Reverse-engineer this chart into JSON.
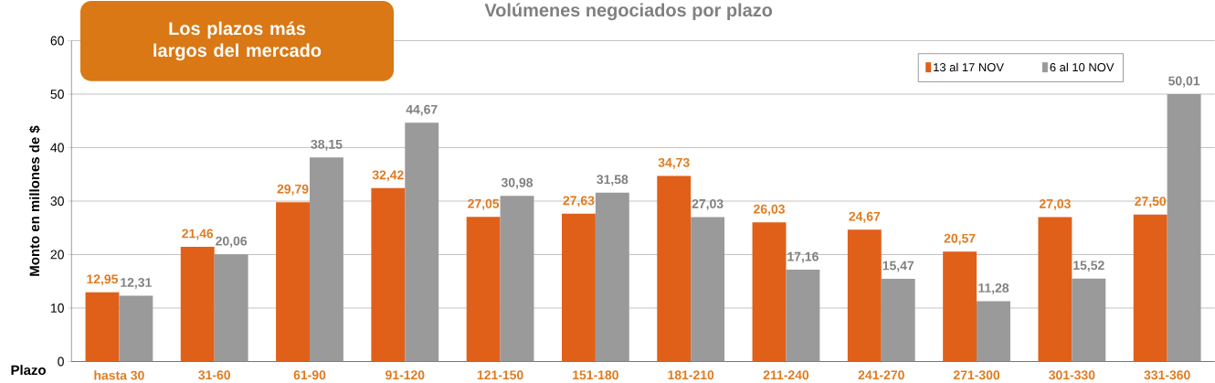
{
  "chart_data": {
    "type": "bar",
    "title": "Volúmenes negociados por plazo",
    "xlabel": "Plazo",
    "ylabel": "Monto en  millones de $",
    "annotations": [
      "Los plazos más largos del mercado"
    ],
    "categories": [
      "hasta 30",
      "31-60",
      "61-90",
      "91-120",
      "121-150",
      "151-180",
      "181-210",
      "211-240",
      "241-270",
      "271-300",
      "301-330",
      "331-360"
    ],
    "series": [
      {
        "name": "13 al 17 NOV",
        "color": "#e0601a",
        "values": [
          12.95,
          21.46,
          29.79,
          32.42,
          27.05,
          27.63,
          34.73,
          26.03,
          24.67,
          20.57,
          27.03,
          27.5
        ],
        "value_labels": [
          "12,95",
          "21,46",
          "29,79",
          "32,42",
          "27,05",
          "27,63",
          "34,73",
          "26,03",
          "24,67",
          "20,57",
          "27,03",
          "27,50"
        ]
      },
      {
        "name": "6 al 10 NOV",
        "color": "#9a9a9a",
        "values": [
          12.31,
          20.06,
          38.15,
          44.67,
          30.98,
          31.58,
          27.03,
          17.16,
          15.47,
          11.28,
          15.52,
          50.01
        ],
        "value_labels": [
          "12,31",
          "20,06",
          "38,15",
          "44,67",
          "30,98",
          "31,58",
          "27,03",
          "17,16",
          "15,47",
          "11,28",
          "15,52",
          "50,01"
        ]
      }
    ],
    "ylim": [
      0,
      60
    ],
    "yticks": [
      0,
      10,
      20,
      30,
      40,
      50,
      60
    ],
    "grid": "y",
    "legend": "top right"
  }
}
